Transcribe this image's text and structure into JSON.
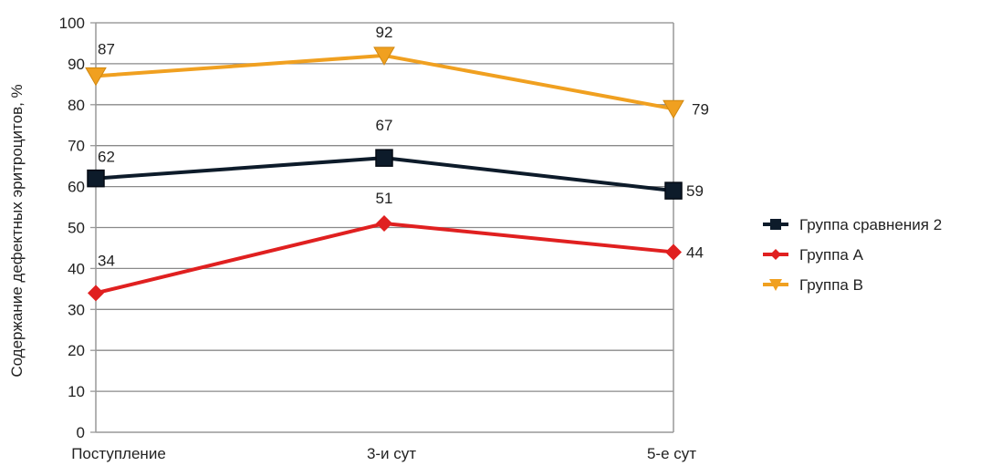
{
  "chart_data": {
    "type": "line",
    "title": "",
    "xlabel": "",
    "ylabel": "Содержание дефектных эритроцитов, %",
    "categories": [
      "Поступление",
      "3-и сут",
      "5-е сут"
    ],
    "ylim": [
      0,
      100
    ],
    "yticks": [
      0,
      10,
      20,
      30,
      40,
      50,
      60,
      70,
      80,
      90,
      100
    ],
    "grid": true,
    "legend_position": "right",
    "series": [
      {
        "name": "Группа сравнения 2",
        "values": [
          62,
          67,
          59
        ],
        "data_labels": [
          "62",
          "67",
          "59"
        ],
        "color": "#0d1b2a",
        "marker": "square"
      },
      {
        "name": "Группа А",
        "values": [
          34,
          51,
          44
        ],
        "data_labels": [
          "34",
          "51",
          "44"
        ],
        "color": "#e02020",
        "marker": "diamond"
      },
      {
        "name": "Группа В",
        "values": [
          87,
          92,
          79
        ],
        "data_labels": [
          "87",
          "92",
          "79"
        ],
        "color": "#f0a020",
        "marker": "triangle-down"
      }
    ]
  }
}
